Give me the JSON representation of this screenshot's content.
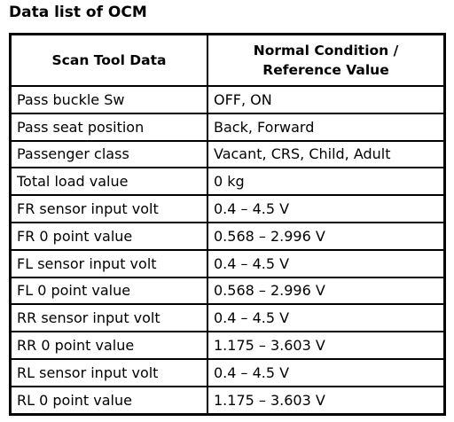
{
  "header": {
    "title": "Data list of OCM"
  },
  "table": {
    "columns": [
      "Scan Tool Data",
      "Normal Condition / Reference Value"
    ],
    "rows": [
      [
        "Pass buckle Sw",
        "OFF, ON"
      ],
      [
        "Pass seat position",
        "Back, Forward"
      ],
      [
        "Passenger class",
        "Vacant, CRS, Child, Adult"
      ],
      [
        "Total load value",
        "0 kg"
      ],
      [
        "FR sensor input volt",
        "0.4 – 4.5 V"
      ],
      [
        "FR 0 point value",
        "0.568 – 2.996 V"
      ],
      [
        "FL sensor input volt",
        "0.4 – 4.5 V"
      ],
      [
        "FL 0 point value",
        "0.568 – 2.996 V"
      ],
      [
        "RR sensor input volt",
        "0.4 – 4.5 V"
      ],
      [
        "RR 0 point value",
        "1.175 – 3.603 V"
      ],
      [
        "RL sensor input volt",
        "0.4 – 4.5 V"
      ],
      [
        "RL 0 point value",
        "1.175 – 3.603 V"
      ]
    ]
  }
}
